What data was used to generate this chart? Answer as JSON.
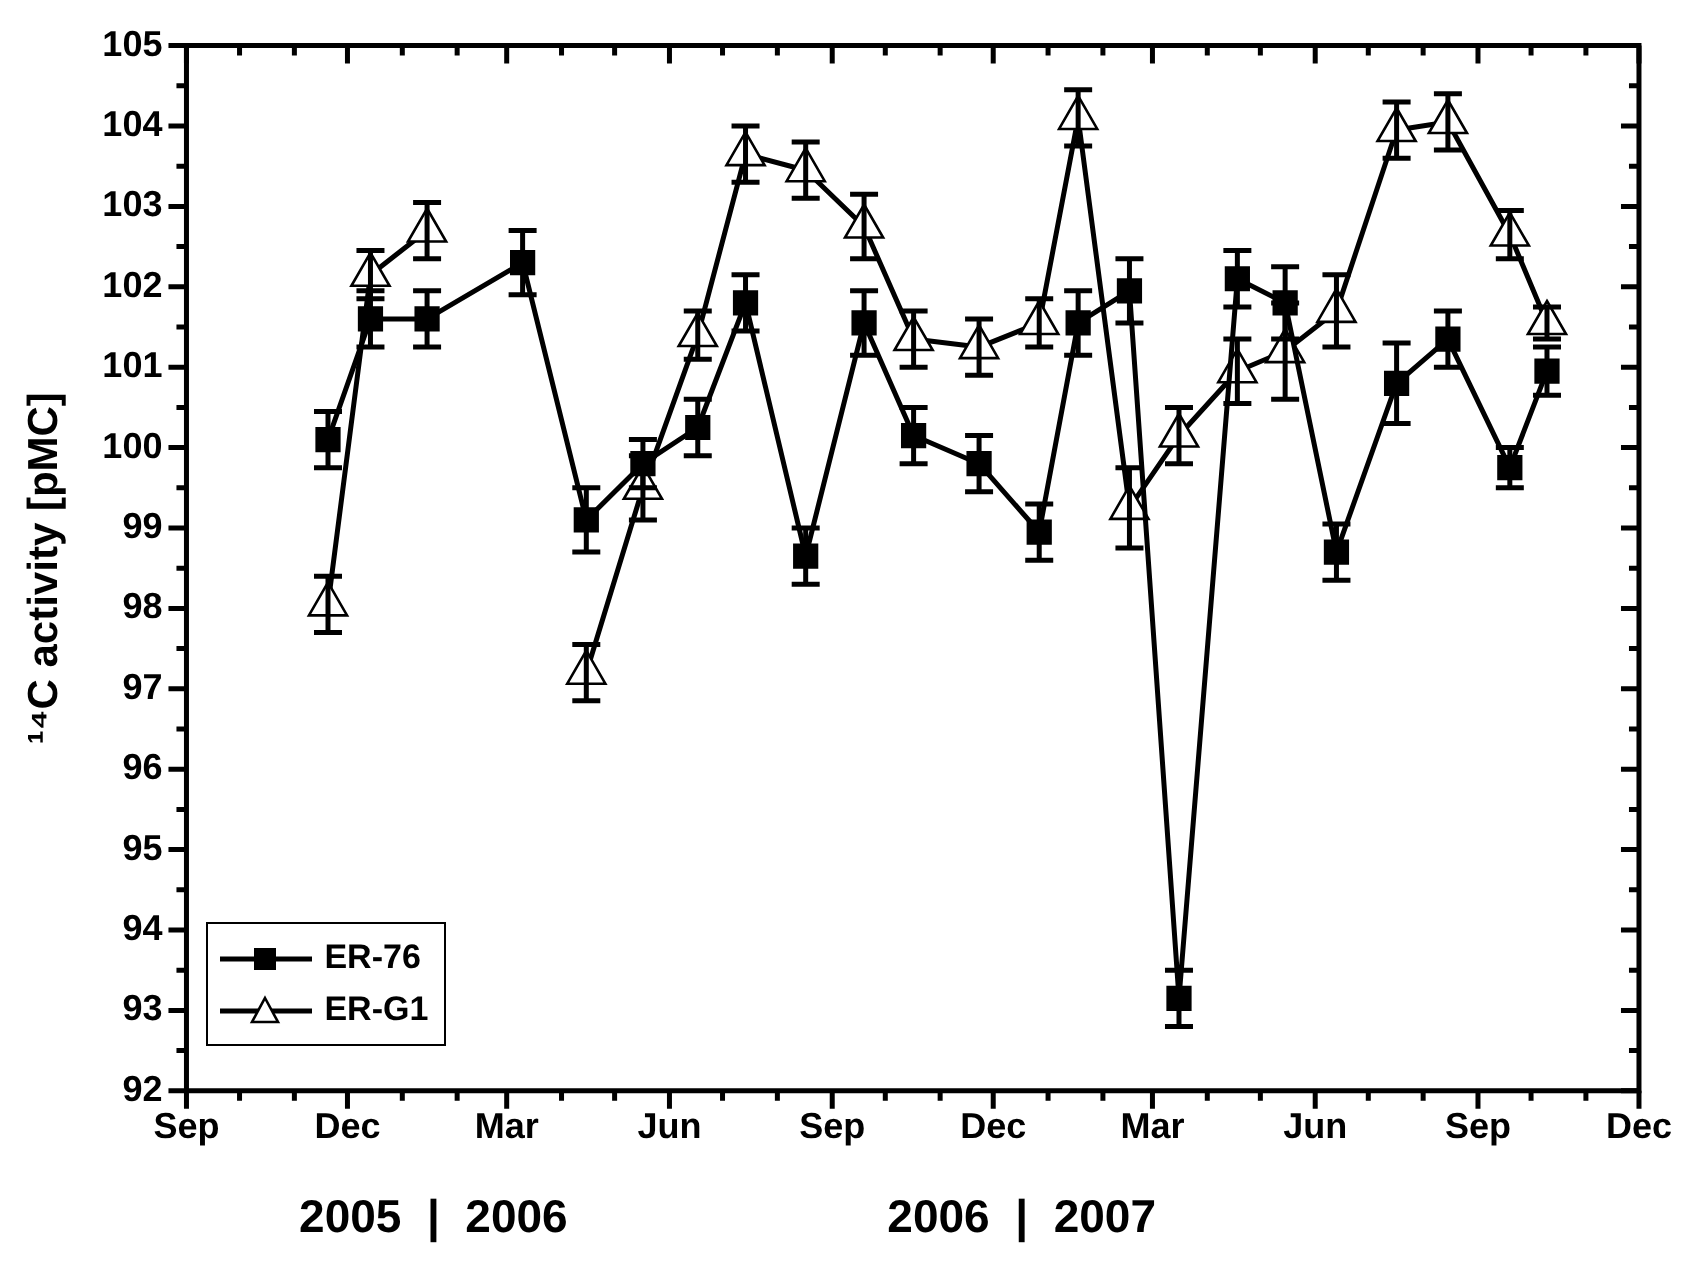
{
  "chart_data": {
    "type": "line",
    "ylabel": "¹⁴C activity [pMC]",
    "x": [
      "2005-11-20",
      "2005-12-14",
      "2006-01-15",
      "2006-03-10",
      "2006-04-15",
      "2006-05-17",
      "2006-06-17",
      "2006-07-14",
      "2006-08-17",
      "2006-09-19",
      "2006-10-17",
      "2006-11-23",
      "2006-12-27",
      "2007-01-18",
      "2007-02-16",
      "2007-03-16",
      "2007-04-18",
      "2007-05-15",
      "2007-06-13",
      "2007-07-17",
      "2007-08-15",
      "2007-09-19",
      "2007-10-10"
    ],
    "series": [
      {
        "name": "ER-76",
        "color": "#000000",
        "marker": "square",
        "values": [
          100.1,
          101.6,
          101.6,
          102.3,
          99.1,
          99.8,
          100.25,
          101.8,
          98.65,
          101.55,
          100.15,
          99.8,
          98.95,
          101.55,
          101.95,
          93.15,
          102.1,
          101.8,
          98.7,
          100.8,
          101.35,
          99.75,
          100.95
        ],
        "errors": [
          0.35,
          0.35,
          0.35,
          0.4,
          0.4,
          0.3,
          0.35,
          0.35,
          0.35,
          0.4,
          0.35,
          0.35,
          0.35,
          0.4,
          0.4,
          0.35,
          0.35,
          0.45,
          0.35,
          0.5,
          0.35,
          0.25,
          0.3
        ]
      },
      {
        "name": "ER-G1",
        "color": "#000000",
        "marker": "triangle",
        "values": [
          98.05,
          102.15,
          102.7,
          null,
          97.2,
          99.5,
          101.4,
          103.65,
          103.45,
          102.75,
          101.35,
          101.25,
          101.55,
          104.1,
          99.25,
          100.15,
          100.95,
          101.2,
          101.7,
          103.95,
          104.05,
          102.65,
          101.55
        ],
        "errors": [
          0.35,
          0.3,
          0.35,
          null,
          0.35,
          0.4,
          0.3,
          0.35,
          0.35,
          0.4,
          0.35,
          0.35,
          0.3,
          0.35,
          0.5,
          0.35,
          0.4,
          0.6,
          0.45,
          0.35,
          0.35,
          0.3,
          0.2
        ]
      }
    ],
    "xlim": [
      "2005-09-01",
      "2007-12-01"
    ],
    "xticks": [
      {
        "value": "2005-09-01",
        "label": "Sep"
      },
      {
        "value": "2005-10-01",
        "label": null
      },
      {
        "value": "2005-11-01",
        "label": null
      },
      {
        "value": "2005-12-01",
        "label": "Dec"
      },
      {
        "value": "2006-01-01",
        "label": null
      },
      {
        "value": "2006-02-01",
        "label": null
      },
      {
        "value": "2006-03-01",
        "label": "Mar"
      },
      {
        "value": "2006-04-01",
        "label": null
      },
      {
        "value": "2006-05-01",
        "label": null
      },
      {
        "value": "2006-06-01",
        "label": "Jun"
      },
      {
        "value": "2006-07-01",
        "label": null
      },
      {
        "value": "2006-08-01",
        "label": null
      },
      {
        "value": "2006-09-01",
        "label": "Sep"
      },
      {
        "value": "2006-10-01",
        "label": null
      },
      {
        "value": "2006-11-01",
        "label": null
      },
      {
        "value": "2006-12-01",
        "label": "Dec"
      },
      {
        "value": "2007-01-01",
        "label": null
      },
      {
        "value": "2007-02-01",
        "label": null
      },
      {
        "value": "2007-03-01",
        "label": "Mar"
      },
      {
        "value": "2007-04-01",
        "label": null
      },
      {
        "value": "2007-05-01",
        "label": null
      },
      {
        "value": "2007-06-01",
        "label": "Jun"
      },
      {
        "value": "2007-07-01",
        "label": null
      },
      {
        "value": "2007-08-01",
        "label": null
      },
      {
        "value": "2007-09-01",
        "label": "Sep"
      },
      {
        "value": "2007-10-01",
        "label": null
      },
      {
        "value": "2007-11-01",
        "label": null
      },
      {
        "value": "2007-12-01",
        "label": "Dec"
      }
    ],
    "ylim": [
      92,
      105
    ],
    "yticks": [
      92,
      {
        "value": 92.5,
        "label": null
      },
      93,
      {
        "value": 93.5,
        "label": null
      },
      94,
      {
        "value": 94.5,
        "label": null
      },
      95,
      {
        "value": 95.5,
        "label": null
      },
      96,
      {
        "value": 96.5,
        "label": null
      },
      97,
      {
        "value": 97.5,
        "label": null
      },
      98,
      {
        "value": 98.5,
        "label": null
      },
      99,
      {
        "value": 99.5,
        "label": null
      },
      100,
      {
        "value": 100.5,
        "label": null
      },
      101,
      {
        "value": 101.5,
        "label": null
      },
      102,
      {
        "value": 102.5,
        "label": null
      },
      103,
      {
        "value": 103.5,
        "label": null
      },
      104,
      {
        "value": 104.5,
        "label": null
      },
      105
    ],
    "annotations": [
      "2005  |  2006",
      "2006  |  2007"
    ],
    "grid": false,
    "legend": "bottom left",
    "line_style": "solid"
  }
}
